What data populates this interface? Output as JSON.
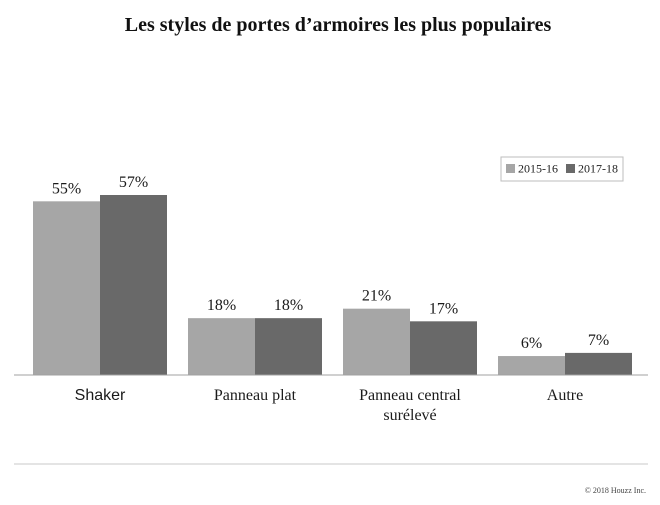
{
  "chart_data": {
    "type": "bar",
    "title": "Les styles de portes d’armoires les plus populaires",
    "categories": [
      [
        "Shaker"
      ],
      [
        "Panneau plat"
      ],
      [
        "Panneau central",
        "surélevé"
      ],
      [
        "Autre"
      ]
    ],
    "series": [
      {
        "name": "2015-16",
        "values": [
          55,
          18,
          21,
          6
        ],
        "labels": [
          "55%",
          "18%",
          "21%",
          "6%"
        ],
        "color": "#a6a6a6"
      },
      {
        "name": "2017-18",
        "values": [
          57,
          18,
          17,
          7
        ],
        "labels": [
          "57%",
          "18%",
          "17%",
          "7%"
        ],
        "color": "#696969"
      }
    ],
    "ylim": [
      0,
      57
    ],
    "grid": false,
    "legend_position": "top-right",
    "xlabel": "",
    "ylabel": ""
  },
  "footer": {
    "copyright": "© 2018 Houzz Inc."
  },
  "colors": {
    "axis": "#a0a0a0",
    "text": "#1a1a1a",
    "divider": "#c8c8c8"
  }
}
